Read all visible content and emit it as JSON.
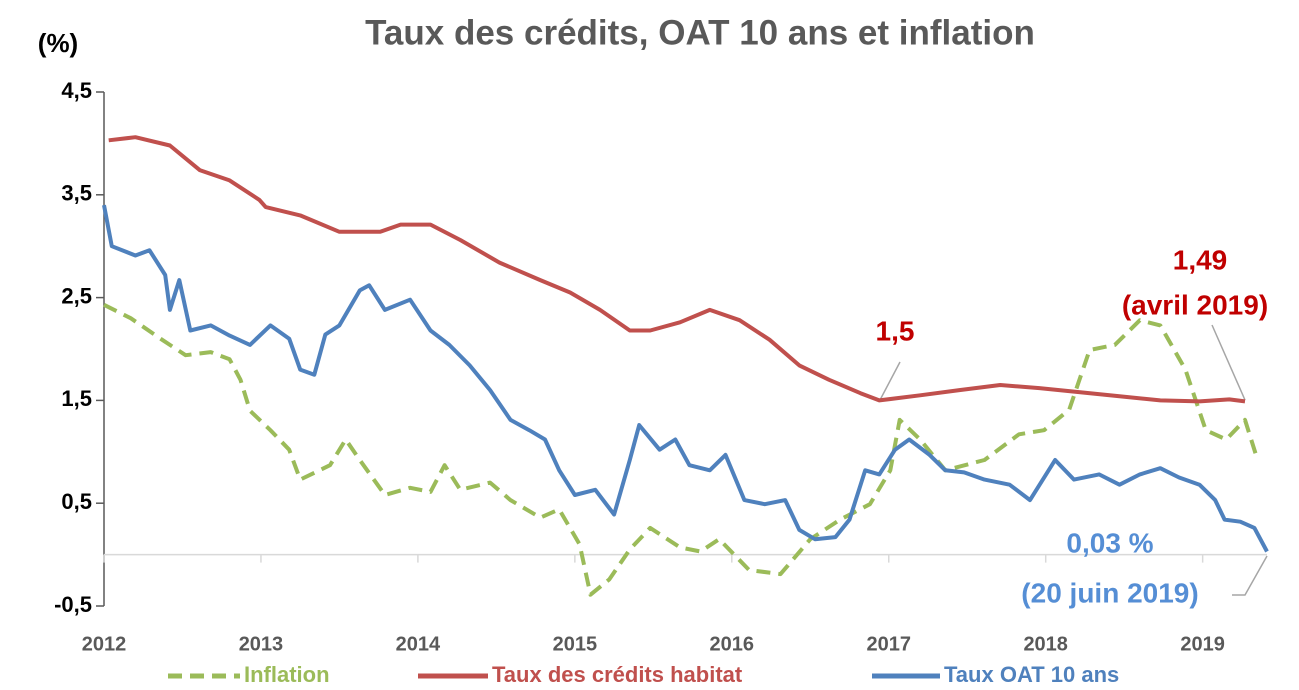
{
  "chart_data": {
    "type": "line",
    "title": "Taux des crédits, OAT 10 ans et inflation",
    "y_label": "(%)",
    "xlim": [
      2012,
      2019.41
    ],
    "xticks": [
      2012,
      2013,
      2014,
      2015,
      2016,
      2017,
      2018,
      2019
    ],
    "ylim": [
      -0.5,
      4.5
    ],
    "yticks": [
      {
        "value": -0.5,
        "label": "-0,5"
      },
      {
        "value": 0.5,
        "label": "0,5"
      },
      {
        "value": 1.5,
        "label": "1,5"
      },
      {
        "value": 2.5,
        "label": "2,5"
      },
      {
        "value": 3.5,
        "label": "3,5"
      },
      {
        "value": 4.5,
        "label": "4,5"
      }
    ],
    "grid": false,
    "legend": "bottom",
    "series": [
      {
        "name": "Inflation",
        "color": "#9bbb59",
        "style": "dashed",
        "x": [
          2012.0,
          2012.17,
          2012.36,
          2012.52,
          2012.68,
          2012.8,
          2012.87,
          2012.93,
          2013.06,
          2013.18,
          2013.25,
          2013.44,
          2013.54,
          2013.63,
          2013.79,
          2013.95,
          2014.08,
          2014.17,
          2014.27,
          2014.46,
          2014.59,
          2014.78,
          2014.9,
          2015.03,
          2015.1,
          2015.22,
          2015.35,
          2015.48,
          2015.67,
          2015.8,
          2015.92,
          2016.11,
          2016.31,
          2016.5,
          2016.69,
          2016.88,
          2017.01,
          2017.07,
          2017.2,
          2017.36,
          2017.61,
          2017.83,
          2017.99,
          2018.15,
          2018.28,
          2018.44,
          2018.6,
          2018.73,
          2018.89,
          2019.02,
          2019.15,
          2019.27,
          2019.35
        ],
        "values": [
          2.43,
          2.3,
          2.1,
          1.94,
          1.97,
          1.9,
          1.7,
          1.4,
          1.21,
          1.02,
          0.73,
          0.87,
          1.12,
          0.92,
          0.58,
          0.65,
          0.61,
          0.87,
          0.63,
          0.7,
          0.53,
          0.36,
          0.44,
          0.1,
          -0.39,
          -0.24,
          0.05,
          0.26,
          0.07,
          0.03,
          0.15,
          -0.15,
          -0.19,
          0.15,
          0.34,
          0.49,
          0.82,
          1.31,
          1.12,
          0.82,
          0.92,
          1.17,
          1.21,
          1.41,
          1.99,
          2.04,
          2.28,
          2.23,
          1.8,
          1.21,
          1.12,
          1.31,
          0.92
        ]
      },
      {
        "name": "Taux des crédits habitat",
        "color": "#c0504d",
        "style": "solid",
        "x": [
          2012.03,
          2012.2,
          2012.42,
          2012.61,
          2012.8,
          2012.99,
          2013.03,
          2013.25,
          2013.5,
          2013.76,
          2013.89,
          2014.08,
          2014.27,
          2014.52,
          2014.78,
          2014.97,
          2015.16,
          2015.35,
          2015.48,
          2015.67,
          2015.86,
          2016.05,
          2016.24,
          2016.43,
          2016.62,
          2016.82,
          2016.94,
          2017.2,
          2017.45,
          2017.71,
          2017.96,
          2018.22,
          2018.47,
          2018.73,
          2018.98,
          2019.17,
          2019.27
        ],
        "values": [
          4.03,
          4.06,
          3.98,
          3.74,
          3.64,
          3.45,
          3.38,
          3.3,
          3.14,
          3.14,
          3.21,
          3.21,
          3.06,
          2.84,
          2.67,
          2.55,
          2.38,
          2.18,
          2.18,
          2.26,
          2.38,
          2.28,
          2.09,
          1.84,
          1.7,
          1.57,
          1.5,
          1.55,
          1.6,
          1.65,
          1.62,
          1.58,
          1.54,
          1.5,
          1.49,
          1.51,
          1.49
        ]
      },
      {
        "name": "Taux OAT 10 ans",
        "color": "#4f81bd",
        "style": "solid",
        "x": [
          2012.0,
          2012.05,
          2012.2,
          2012.29,
          2012.39,
          2012.42,
          2012.48,
          2012.55,
          2012.68,
          2012.8,
          2012.93,
          2013.06,
          2013.18,
          2013.25,
          2013.34,
          2013.41,
          2013.5,
          2013.63,
          2013.69,
          2013.79,
          2013.95,
          2014.08,
          2014.2,
          2014.33,
          2014.46,
          2014.59,
          2014.71,
          2014.81,
          2014.9,
          2015.0,
          2015.13,
          2015.25,
          2015.35,
          2015.41,
          2015.54,
          2015.64,
          2015.73,
          2015.86,
          2015.96,
          2016.08,
          2016.21,
          2016.34,
          2016.43,
          2016.53,
          2016.66,
          2016.75,
          2016.85,
          2016.94,
          2017.04,
          2017.13,
          2017.26,
          2017.36,
          2017.48,
          2017.61,
          2017.77,
          2017.9,
          2018.06,
          2018.18,
          2018.34,
          2018.47,
          2018.6,
          2018.73,
          2018.85,
          2018.98,
          2019.08,
          2019.14,
          2019.24,
          2019.33,
          2019.41
        ],
        "values": [
          3.4,
          3.0,
          2.91,
          2.96,
          2.72,
          2.38,
          2.67,
          2.18,
          2.23,
          2.13,
          2.04,
          2.23,
          2.1,
          1.8,
          1.75,
          2.14,
          2.23,
          2.57,
          2.62,
          2.38,
          2.48,
          2.18,
          2.04,
          1.84,
          1.6,
          1.31,
          1.21,
          1.12,
          0.82,
          0.58,
          0.63,
          0.39,
          0.92,
          1.26,
          1.02,
          1.12,
          0.87,
          0.82,
          0.97,
          0.53,
          0.49,
          0.53,
          0.24,
          0.15,
          0.17,
          0.34,
          0.82,
          0.78,
          1.02,
          1.12,
          0.97,
          0.82,
          0.8,
          0.73,
          0.68,
          0.53,
          0.92,
          0.73,
          0.78,
          0.68,
          0.78,
          0.84,
          0.75,
          0.68,
          0.53,
          0.34,
          0.32,
          0.26,
          0.03
        ]
      }
    ],
    "annotations": [
      "1,5",
      "1,49",
      "(avril 2019)",
      "0,03 %",
      "(20 juin 2019)"
    ]
  }
}
